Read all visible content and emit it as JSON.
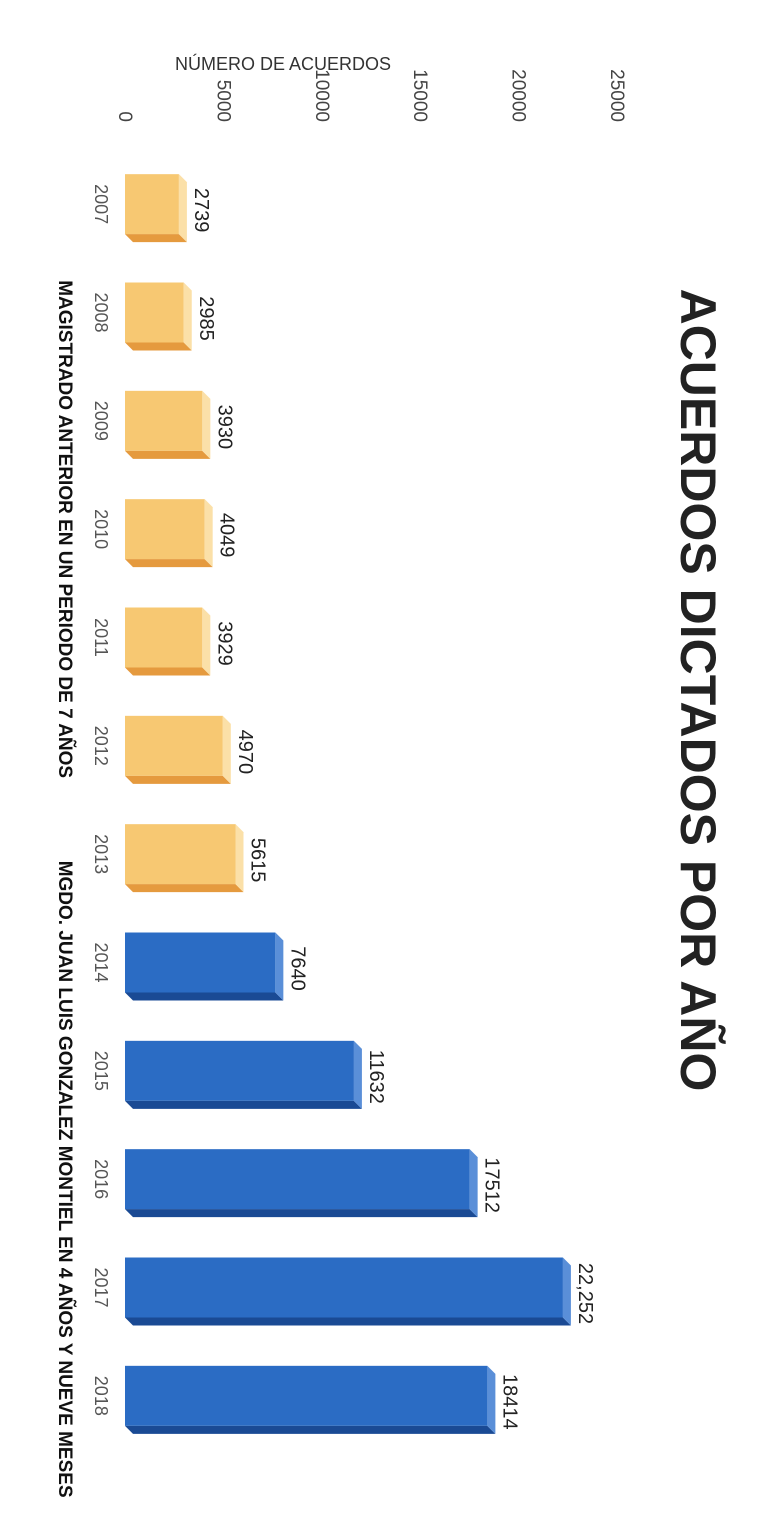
{
  "chart_data": {
    "type": "bar",
    "title": "ACUERDOS DICTADOS POR AÑO",
    "ylabel": "NÚMERO DE ACUERDOS",
    "xlabel": "",
    "ylim": [
      0,
      25000
    ],
    "yticks": [
      "0",
      "5000",
      "10000",
      "15000",
      "20000",
      "25000"
    ],
    "categories": [
      "2007",
      "2008",
      "2009",
      "2010",
      "2011",
      "2012",
      "2013",
      "2014",
      "2015",
      "2016",
      "2017",
      "2018"
    ],
    "values": [
      2739,
      2985,
      3930,
      4049,
      3929,
      4970,
      5615,
      7640,
      11632,
      17512,
      22252,
      18414
    ],
    "data_labels": [
      "2739",
      "2985",
      "3930",
      "4049",
      "3929",
      "4970",
      "5615",
      "7640",
      "11632",
      "17512",
      "22,252",
      "18414"
    ],
    "groups": [
      {
        "label": "MAGISTRADO ANTERIOR EN UN PERIODO  DE 7 AÑOS",
        "from": 0,
        "to": 6,
        "color": "#f7c872",
        "side": "#e59a3e",
        "top": "#fbe0a8"
      },
      {
        "label": "MGDO. JUAN LUIS GONZALEZ MONTIEL EN 4 AÑOS Y NUEVE MESES",
        "from": 7,
        "to": 11,
        "color": "#2b6cc4",
        "side": "#1a4a94",
        "top": "#5a8fd8"
      }
    ],
    "grid": false,
    "legend": "none"
  }
}
